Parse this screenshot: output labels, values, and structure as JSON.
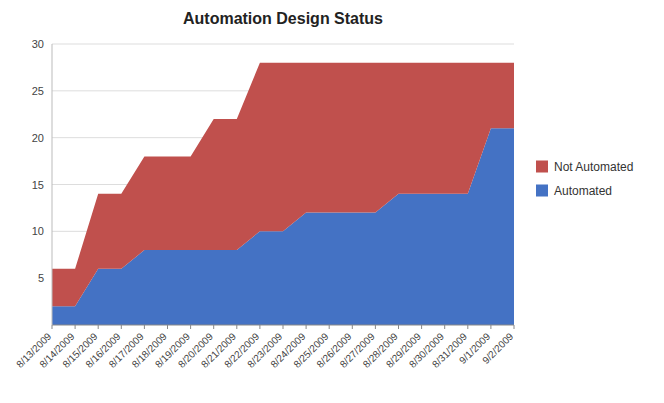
{
  "chart_data": {
    "type": "area",
    "stacked": true,
    "title": "Automation Design Status",
    "categories": [
      "8/13/2009",
      "8/14/2009",
      "8/15/2009",
      "8/16/2009",
      "8/17/2009",
      "8/18/2009",
      "8/19/2009",
      "8/20/2009",
      "8/21/2009",
      "8/22/2009",
      "8/23/2009",
      "8/24/2009",
      "8/25/2009",
      "8/26/2009",
      "8/27/2009",
      "8/28/2009",
      "8/29/2009",
      "8/30/2009",
      "8/31/2009",
      "9/1/2009",
      "9/2/2009"
    ],
    "series": [
      {
        "name": "Automated",
        "color": "#4472C4",
        "values": [
          2,
          2,
          6,
          6,
          8,
          8,
          8,
          8,
          8,
          10,
          10,
          12,
          12,
          12,
          12,
          14,
          14,
          14,
          14,
          21,
          21
        ]
      },
      {
        "name": "Not Automated",
        "color": "#C0504D",
        "values": [
          4,
          4,
          8,
          8,
          10,
          10,
          10,
          14,
          14,
          18,
          18,
          16,
          16,
          16,
          16,
          14,
          14,
          14,
          14,
          7,
          7
        ]
      }
    ],
    "ylim": [
      0,
      30
    ],
    "yticks": [
      5,
      10,
      15,
      20,
      25,
      30
    ],
    "grid": true,
    "legend": "right"
  }
}
